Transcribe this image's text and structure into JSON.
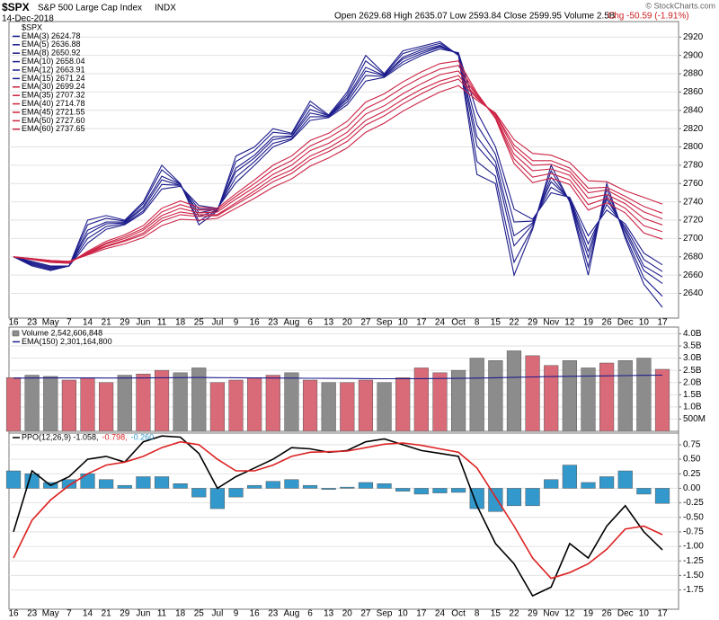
{
  "header": {
    "symbol": "$SPX",
    "name": "S&P 500 Large Cap Index",
    "exchange": "INDX",
    "date": "14-Dec-2018",
    "quote": "Open 2629.68 High 2635.07 Low 2593.84 Close 2599.95 Volume 2.5B",
    "change": "Chg -50.59 (-1.91%)",
    "credit": "© StockCharts.com"
  },
  "chart_data": [
    {
      "type": "line",
      "title": "$SPX",
      "grid": true,
      "legend": "top-left",
      "categories": [
        "16",
        "23",
        "May",
        "7",
        "14",
        "21",
        "29",
        "Jun",
        "11",
        "18",
        "25",
        "Jul",
        "9",
        "16",
        "23",
        "Aug",
        "6",
        "13",
        "20",
        "27",
        "Sep",
        "10",
        "17",
        "24",
        "Oct",
        "8",
        "15",
        "22",
        "29",
        "Nov",
        "12",
        "19",
        "26",
        "Dec",
        "10",
        "17"
      ],
      "ylim": [
        2615,
        2935
      ],
      "yticks": [
        2640,
        2660,
        2680,
        2700,
        2720,
        2740,
        2760,
        2780,
        2800,
        2820,
        2840,
        2860,
        2880,
        2900,
        2920
      ],
      "series": [
        {
          "name": "EMA(3) 2624.78",
          "color": "#1c1c8c",
          "values": [
            2680,
            2670,
            2665,
            2670,
            2720,
            2725,
            2720,
            2740,
            2780,
            2760,
            2715,
            2730,
            2790,
            2800,
            2820,
            2815,
            2850,
            2835,
            2860,
            2900,
            2880,
            2905,
            2910,
            2915,
            2900,
            2770,
            2760,
            2660,
            2710,
            2780,
            2740,
            2660,
            2760,
            2700,
            2650,
            2624.78
          ]
        },
        {
          "name": "EMA(5) 2636.88",
          "color": "#1c1c8c",
          "values": [
            2680,
            2671,
            2666,
            2670,
            2715,
            2722,
            2719,
            2738,
            2775,
            2759,
            2719,
            2731,
            2784,
            2796,
            2816,
            2814,
            2846,
            2834,
            2857,
            2894,
            2879,
            2902,
            2908,
            2913,
            2901,
            2784,
            2768,
            2674,
            2712,
            2774,
            2741,
            2669,
            2754,
            2703,
            2657,
            2636.88
          ]
        },
        {
          "name": "EMA(8) 2650.92",
          "color": "#1c1c8c",
          "values": [
            2680,
            2672,
            2667,
            2670,
            2709,
            2718,
            2718,
            2735,
            2768,
            2759,
            2724,
            2731,
            2777,
            2791,
            2811,
            2812,
            2841,
            2834,
            2854,
            2887,
            2878,
            2898,
            2906,
            2911,
            2901,
            2801,
            2778,
            2692,
            2715,
            2767,
            2742,
            2679,
            2747,
            2707,
            2665,
            2650.92
          ]
        },
        {
          "name": "EMA(10) 2658.04",
          "color": "#1c1c8c",
          "values": [
            2680,
            2673,
            2668,
            2670,
            2705,
            2716,
            2717,
            2733,
            2764,
            2758,
            2728,
            2732,
            2773,
            2788,
            2808,
            2811,
            2837,
            2833,
            2852,
            2883,
            2878,
            2896,
            2904,
            2910,
            2902,
            2811,
            2784,
            2703,
            2717,
            2762,
            2743,
            2686,
            2743,
            2710,
            2670,
            2658.04
          ]
        },
        {
          "name": "EMA(12) 2663.91",
          "color": "#1c1c8c",
          "values": [
            2680,
            2674,
            2669,
            2670,
            2700,
            2713,
            2716,
            2730,
            2759,
            2758,
            2732,
            2732,
            2767,
            2784,
            2804,
            2809,
            2833,
            2833,
            2849,
            2878,
            2877,
            2893,
            2902,
            2909,
            2902,
            2824,
            2792,
            2718,
            2719,
            2756,
            2744,
            2694,
            2737,
            2713,
            2677,
            2663.91
          ]
        },
        {
          "name": "EMA(15) 2671.24",
          "color": "#1c1c8c",
          "values": [
            2680,
            2675,
            2670,
            2670,
            2695,
            2710,
            2715,
            2728,
            2754,
            2757,
            2736,
            2733,
            2761,
            2780,
            2800,
            2808,
            2829,
            2832,
            2846,
            2872,
            2876,
            2890,
            2900,
            2907,
            2903,
            2838,
            2800,
            2732,
            2721,
            2750,
            2745,
            2703,
            2731,
            2716,
            2684,
            2671.24
          ]
        },
        {
          "name": "EMA(30) 2699.24",
          "color": "#cc2244",
          "values": [
            2680,
            2677,
            2674,
            2673,
            2686,
            2697,
            2704,
            2714,
            2733,
            2741,
            2734,
            2733,
            2749,
            2764,
            2780,
            2790,
            2807,
            2815,
            2828,
            2849,
            2858,
            2871,
            2882,
            2891,
            2894,
            2859,
            2831,
            2782,
            2761,
            2766,
            2759,
            2731,
            2739,
            2728,
            2706,
            2699.24
          ]
        },
        {
          "name": "EMA(35) 2707.32",
          "color": "#cc2244",
          "values": [
            2680,
            2677,
            2674,
            2673,
            2685,
            2695,
            2702,
            2711,
            2729,
            2737,
            2731,
            2731,
            2746,
            2760,
            2775,
            2785,
            2801,
            2810,
            2822,
            2842,
            2852,
            2865,
            2876,
            2885,
            2889,
            2857,
            2832,
            2787,
            2767,
            2771,
            2764,
            2737,
            2744,
            2733,
            2714,
            2707.32
          ]
        },
        {
          "name": "EMA(40) 2714.78",
          "color": "#cc2244",
          "values": [
            2680,
            2677,
            2675,
            2674,
            2684,
            2694,
            2700,
            2709,
            2725,
            2733,
            2728,
            2729,
            2743,
            2756,
            2770,
            2780,
            2796,
            2804,
            2816,
            2836,
            2845,
            2858,
            2869,
            2879,
            2883,
            2856,
            2833,
            2792,
            2774,
            2776,
            2769,
            2744,
            2748,
            2738,
            2722,
            2714.78
          ]
        },
        {
          "name": "EMA(45) 2721.55",
          "color": "#cc2244",
          "values": [
            2680,
            2678,
            2675,
            2674,
            2684,
            2692,
            2698,
            2706,
            2722,
            2729,
            2726,
            2726,
            2739,
            2752,
            2766,
            2775,
            2790,
            2799,
            2811,
            2829,
            2839,
            2852,
            2863,
            2872,
            2878,
            2854,
            2835,
            2798,
            2780,
            2781,
            2773,
            2750,
            2753,
            2742,
            2729,
            2721.55
          ]
        },
        {
          "name": "EMA(50) 2727.60",
          "color": "#cc2244",
          "values": [
            2680,
            2678,
            2676,
            2675,
            2683,
            2691,
            2697,
            2704,
            2719,
            2726,
            2724,
            2725,
            2737,
            2749,
            2762,
            2771,
            2786,
            2795,
            2806,
            2824,
            2834,
            2847,
            2858,
            2868,
            2874,
            2853,
            2836,
            2802,
            2785,
            2785,
            2777,
            2755,
            2756,
            2746,
            2735,
            2727.6
          ]
        },
        {
          "name": "EMA(60) 2737.65",
          "color": "#cc2244",
          "values": [
            2680,
            2678,
            2676,
            2675,
            2682,
            2689,
            2694,
            2701,
            2714,
            2721,
            2720,
            2722,
            2733,
            2744,
            2756,
            2765,
            2779,
            2788,
            2799,
            2816,
            2826,
            2839,
            2850,
            2860,
            2867,
            2851,
            2837,
            2808,
            2793,
            2791,
            2783,
            2763,
            2762,
            2752,
            2745,
            2737.65
          ]
        }
      ]
    },
    {
      "type": "bar",
      "grid": true,
      "legend": "top-left",
      "ylim": [
        0,
        4200000000
      ],
      "yticks": [
        {
          "value": 500000000,
          "label": "500M"
        },
        {
          "value": 1000000000,
          "label": "1.0B"
        },
        {
          "value": 1500000000,
          "label": "1.5B"
        },
        {
          "value": 2000000000,
          "label": "2.0B"
        },
        {
          "value": 2500000000,
          "label": "2.5B"
        },
        {
          "value": 3000000000,
          "label": "3.0B"
        },
        {
          "value": 3500000000,
          "label": "3.5B"
        },
        {
          "value": 4000000000,
          "label": "4.0B"
        }
      ],
      "series": [
        {
          "name": "Volume 2,542,606,848",
          "type": "bar",
          "color": "#8c8c8c",
          "colors": [
            "#d96b78",
            "#8c8c8c",
            "#8c8c8c",
            "#d96b78",
            "#d96b78",
            "#d96b78",
            "#8c8c8c",
            "#d96b78",
            "#d96b78",
            "#8c8c8c",
            "#8c8c8c",
            "#d96b78",
            "#d96b78",
            "#d96b78",
            "#d96b78",
            "#8c8c8c",
            "#d96b78",
            "#8c8c8c",
            "#d96b78",
            "#d96b78",
            "#8c8c8c",
            "#d96b78",
            "#d96b78",
            "#d96b78",
            "#8c8c8c",
            "#8c8c8c",
            "#8c8c8c",
            "#8c8c8c",
            "#d96b78",
            "#d96b78",
            "#8c8c8c",
            "#8c8c8c",
            "#d96b78",
            "#8c8c8c",
            "#8c8c8c",
            "#d96b78"
          ],
          "values": [
            2200000000,
            2300000000,
            2250000000,
            2100000000,
            2200000000,
            2000000000,
            2300000000,
            2350000000,
            2500000000,
            2400000000,
            2600000000,
            2000000000,
            2100000000,
            2200000000,
            2300000000,
            2400000000,
            2100000000,
            2000000000,
            2000000000,
            2100000000,
            2000000000,
            2200000000,
            2600000000,
            2400000000,
            2500000000,
            3000000000,
            2900000000,
            3300000000,
            3100000000,
            2700000000,
            2900000000,
            2600000000,
            2800000000,
            2900000000,
            3000000000,
            2542606848
          ]
        },
        {
          "name": "EMA(150) 2,301,164,800",
          "type": "line",
          "color": "#1c1c8c",
          "values": [
            2180000000,
            2185000000,
            2190000000,
            2190000000,
            2190000000,
            2185000000,
            2185000000,
            2190000000,
            2195000000,
            2200000000,
            2205000000,
            2200000000,
            2195000000,
            2190000000,
            2185000000,
            2180000000,
            2175000000,
            2170000000,
            2165000000,
            2160000000,
            2155000000,
            2155000000,
            2160000000,
            2165000000,
            2170000000,
            2180000000,
            2195000000,
            2215000000,
            2230000000,
            2245000000,
            2255000000,
            2265000000,
            2275000000,
            2285000000,
            2295000000,
            2301164800
          ]
        }
      ]
    },
    {
      "type": "line",
      "grid": true,
      "legend": "top-left",
      "categories": [
        "16",
        "23",
        "May",
        "7",
        "14",
        "21",
        "29",
        "Jun",
        "11",
        "18",
        "25",
        "Jul",
        "9",
        "16",
        "23",
        "Aug",
        "6",
        "13",
        "20",
        "27",
        "Sep",
        "10",
        "17",
        "24",
        "Oct",
        "8",
        "15",
        "22",
        "29",
        "Nov",
        "12",
        "19",
        "26",
        "Dec",
        "10",
        "17"
      ],
      "ylim": [
        -2.05,
        0.95
      ],
      "yticks": [
        {
          "value": -1.75,
          "label": "-1.75"
        },
        {
          "value": -1.5,
          "label": "-1.50"
        },
        {
          "value": -1.25,
          "label": "-1.25"
        },
        {
          "value": -1,
          "label": "-1.00"
        },
        {
          "value": -0.75,
          "label": "-0.75"
        },
        {
          "value": -0.5,
          "label": "-0.50"
        },
        {
          "value": -0.25,
          "label": "-0.25"
        },
        {
          "value": 0,
          "label": "0.00"
        },
        {
          "value": 0.25,
          "label": "0.25"
        },
        {
          "value": 0.5,
          "label": "0.50"
        },
        {
          "value": 0.75,
          "label": "0.75"
        }
      ],
      "series": [
        {
          "name": "PPO(12,26,9) -1.058,",
          "color": "#000000",
          "values": [
            -0.75,
            0.3,
            0.05,
            0.2,
            0.5,
            0.55,
            0.45,
            0.8,
            0.9,
            0.88,
            0.6,
            0,
            0.2,
            0.35,
            0.5,
            0.7,
            0.68,
            0.62,
            0.65,
            0.8,
            0.85,
            0.75,
            0.65,
            0.6,
            0.55,
            -0.3,
            -0.95,
            -1.3,
            -1.85,
            -1.7,
            -0.95,
            -1.2,
            -0.65,
            -0.3,
            -0.75,
            -1.058
          ]
        },
        {
          "name": "-0.798,",
          "color": "#dd2222",
          "values": [
            -1.2,
            -0.55,
            -0.2,
            0.05,
            0.25,
            0.4,
            0.45,
            0.55,
            0.7,
            0.8,
            0.75,
            0.5,
            0.3,
            0.3,
            0.4,
            0.55,
            0.62,
            0.63,
            0.64,
            0.7,
            0.76,
            0.78,
            0.74,
            0.68,
            0.62,
            0.35,
            -0.15,
            -0.65,
            -1.2,
            -1.55,
            -1.45,
            -1.3,
            -1.05,
            -0.7,
            -0.65,
            -0.798
          ]
        },
        {
          "name": "-0.260",
          "type": "bar",
          "color": "#3399cc",
          "values": [
            0.3,
            0.25,
            0.1,
            0.15,
            0.25,
            0.15,
            0.05,
            0.2,
            0.2,
            0.08,
            -0.15,
            -0.35,
            -0.15,
            0.05,
            0.12,
            0.15,
            0.05,
            -0.02,
            0.02,
            0.1,
            0.08,
            -0.05,
            -0.1,
            -0.08,
            -0.07,
            -0.35,
            -0.4,
            -0.3,
            -0.3,
            0.15,
            0.4,
            0.1,
            0.2,
            0.3,
            -0.1,
            -0.26
          ]
        }
      ]
    }
  ]
}
